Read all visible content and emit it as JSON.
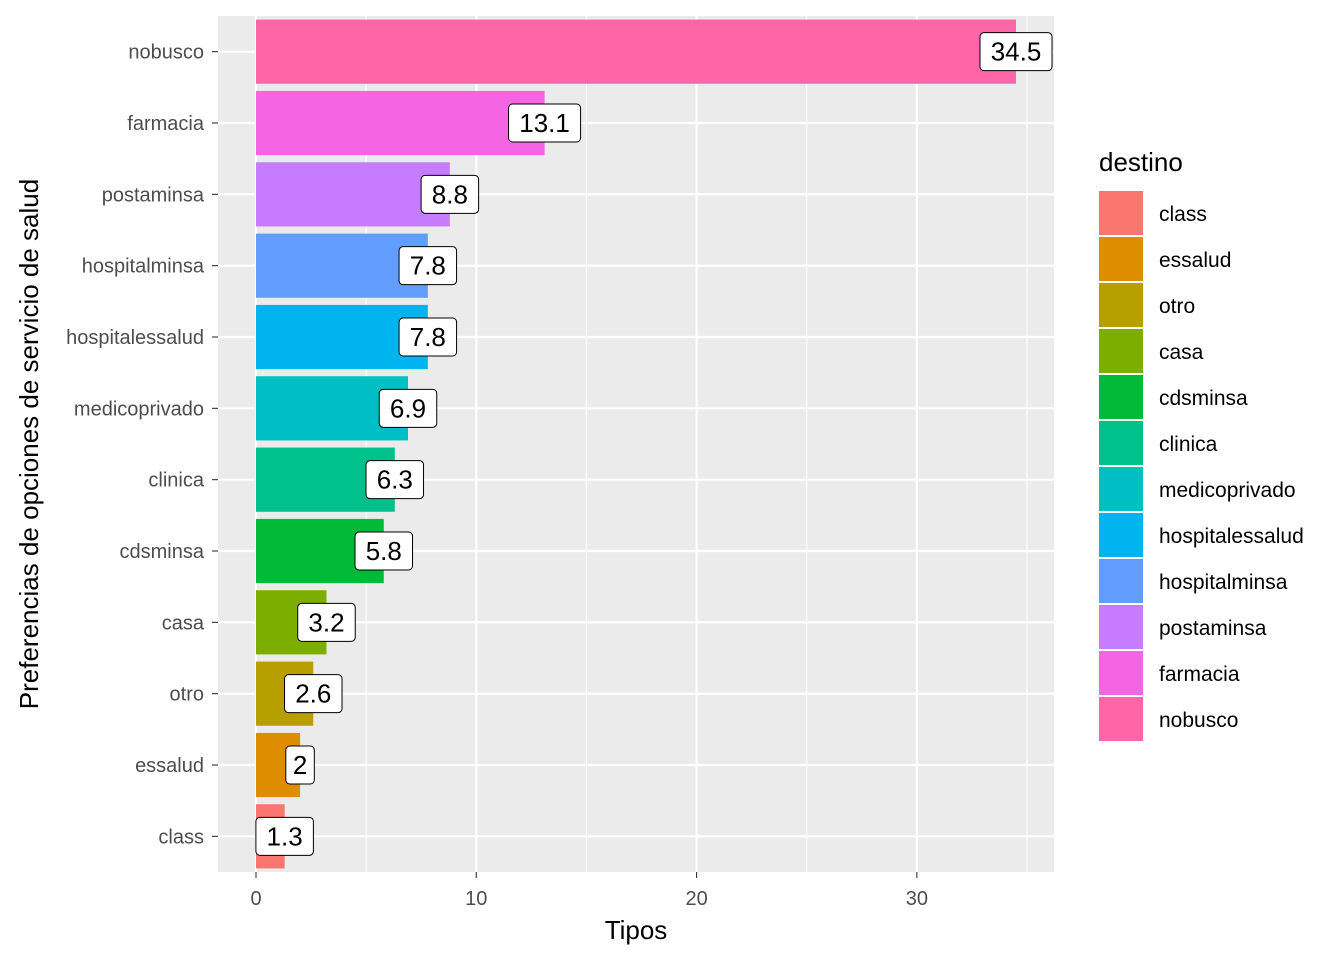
{
  "chart_data": {
    "type": "bar",
    "orientation": "horizontal",
    "categories": [
      "nobusco",
      "farmacia",
      "postaminsa",
      "hospitalminsa",
      "hospitalessalud",
      "medicoprivado",
      "clinica",
      "cdsminsa",
      "casa",
      "otro",
      "essalud",
      "class"
    ],
    "values": [
      34.5,
      13.1,
      8.8,
      7.8,
      7.8,
      6.9,
      6.3,
      5.8,
      3.2,
      2.6,
      2,
      1.3
    ],
    "data_labels": [
      "34.5",
      "13.1",
      "8.8",
      "7.8",
      "7.8",
      "6.9",
      "6.3",
      "5.8",
      "3.2",
      "2.6",
      "2",
      "1.3"
    ],
    "colors": [
      "#FF66A8",
      "#F564E3",
      "#C77CFF",
      "#619CFF",
      "#00B4EF",
      "#00BFC4",
      "#00C08B",
      "#00BA38",
      "#7CAE00",
      "#B79F00",
      "#DE8C00",
      "#F8766D"
    ],
    "xlabel": "Tipos",
    "ylabel": "Preferencias de opciones de servicio de salud",
    "xlim": [
      -1.725,
      36.225
    ],
    "xticks": [
      0,
      10,
      20,
      30
    ],
    "xtick_labels": [
      "0",
      "10",
      "20",
      "30"
    ],
    "grid": true,
    "legend": {
      "title": "destino",
      "position": "right",
      "entries": [
        {
          "label": "class",
          "color": "#F8766D"
        },
        {
          "label": "essalud",
          "color": "#DE8C00"
        },
        {
          "label": "otro",
          "color": "#B79F00"
        },
        {
          "label": "casa",
          "color": "#7CAE00"
        },
        {
          "label": "cdsminsa",
          "color": "#00BA38"
        },
        {
          "label": "clinica",
          "color": "#00C08B"
        },
        {
          "label": "medicoprivado",
          "color": "#00BFC4"
        },
        {
          "label": "hospitalessalud",
          "color": "#00B4EF"
        },
        {
          "label": "hospitalminsa",
          "color": "#619CFF"
        },
        {
          "label": "postaminsa",
          "color": "#C77CFF"
        },
        {
          "label": "farmacia",
          "color": "#F564E3"
        },
        {
          "label": "nobusco",
          "color": "#FF66A8"
        }
      ]
    }
  }
}
